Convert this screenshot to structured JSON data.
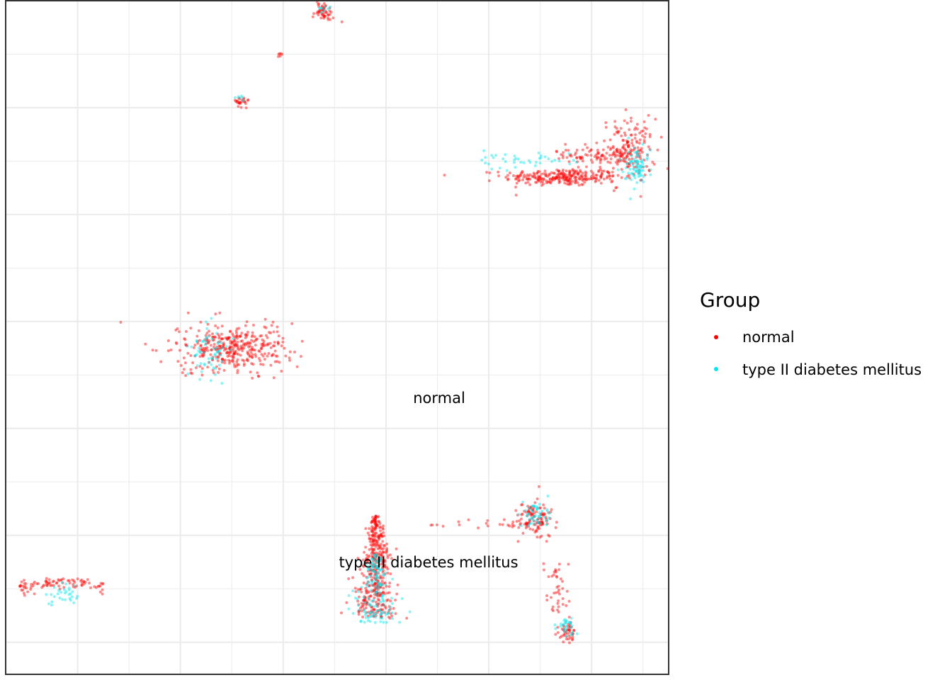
{
  "chart_data": {
    "type": "scatter",
    "title": "",
    "xlabel": "",
    "ylabel": "",
    "grid": true,
    "legend": {
      "title": "Group",
      "placement": "right",
      "entries": [
        {
          "label": "normal",
          "color": "#ff0000"
        },
        {
          "label": "type II diabetes mellitus",
          "color": "#00e5ee"
        }
      ]
    },
    "annotations": [
      {
        "text": "normal",
        "x": 0.5,
        "y": 7.0
      },
      {
        "text": "type II diabetes mellitus",
        "x": 0.33,
        "y": 0.45
      }
    ],
    "xlim": [
      -3.2,
      3.25
    ],
    "ylim": [
      -0.8,
      5.5
    ],
    "series": [
      {
        "name": "normal",
        "color": "#ff0000",
        "clusters": [
          {
            "cx": 2.2,
            "cy": 3.85,
            "sx": 0.28,
            "sy": 0.04,
            "n": 260,
            "shape": "blob"
          },
          {
            "cx": 2.85,
            "cy": 4.1,
            "sx": 0.14,
            "sy": 0.15,
            "n": 180,
            "shape": "blob"
          },
          {
            "cx": 2.55,
            "cy": 4.05,
            "sx": 0.25,
            "sy": 0.05,
            "n": 70,
            "shape": "bridge"
          },
          {
            "cx": -1.0,
            "cy": 2.25,
            "sx": 0.28,
            "sy": 0.11,
            "n": 380,
            "shape": "blob"
          },
          {
            "cx": -0.1,
            "cy": 5.4,
            "sx": 0.05,
            "sy": 0.04,
            "n": 50,
            "shape": "blob"
          },
          {
            "cx": -0.55,
            "cy": 5.0,
            "sx": 0.03,
            "sy": 0.01,
            "n": 6,
            "shape": "blob"
          },
          {
            "cx": -0.9,
            "cy": 4.55,
            "sx": 0.04,
            "sy": 0.03,
            "n": 25,
            "shape": "blob"
          },
          {
            "cx": -2.65,
            "cy": 0.0,
            "sx": 0.3,
            "sy": 0.05,
            "n": 90,
            "shape": "arc"
          },
          {
            "cx": 0.4,
            "cy": 0.2,
            "sx": 0.12,
            "sy": 0.3,
            "n": 420,
            "shape": "drop"
          },
          {
            "cx": 1.4,
            "cy": 0.6,
            "sx": 0.3,
            "sy": 0.02,
            "n": 25,
            "shape": "bridge"
          },
          {
            "cx": 1.95,
            "cy": 0.65,
            "sx": 0.08,
            "sy": 0.08,
            "n": 110,
            "shape": "blob"
          },
          {
            "cx": 2.15,
            "cy": 0.0,
            "sx": 0.05,
            "sy": 0.25,
            "n": 40,
            "shape": "stem"
          },
          {
            "cx": 2.25,
            "cy": -0.4,
            "sx": 0.05,
            "sy": 0.05,
            "n": 45,
            "shape": "blob"
          }
        ]
      },
      {
        "name": "type II diabetes mellitus",
        "color": "#00e5ee",
        "clusters": [
          {
            "cx": 2.95,
            "cy": 3.95,
            "sx": 0.08,
            "sy": 0.1,
            "n": 80,
            "shape": "blob"
          },
          {
            "cx": 1.9,
            "cy": 4.0,
            "sx": 0.3,
            "sy": 0.04,
            "n": 40,
            "shape": "bridge"
          },
          {
            "cx": -1.2,
            "cy": 2.2,
            "sx": 0.1,
            "sy": 0.12,
            "n": 60,
            "shape": "blob"
          },
          {
            "cx": -0.1,
            "cy": 5.42,
            "sx": 0.03,
            "sy": 0.02,
            "n": 8,
            "shape": "blob"
          },
          {
            "cx": -0.92,
            "cy": 4.58,
            "sx": 0.02,
            "sy": 0.02,
            "n": 6,
            "shape": "blob"
          },
          {
            "cx": -2.65,
            "cy": -0.05,
            "sx": 0.1,
            "sy": 0.05,
            "n": 30,
            "shape": "blob"
          },
          {
            "cx": 0.4,
            "cy": 0.0,
            "sx": 0.12,
            "sy": 0.2,
            "n": 160,
            "shape": "drop"
          },
          {
            "cx": 1.95,
            "cy": 0.7,
            "sx": 0.07,
            "sy": 0.06,
            "n": 50,
            "shape": "blob"
          },
          {
            "cx": 2.25,
            "cy": -0.35,
            "sx": 0.05,
            "sy": 0.05,
            "n": 30,
            "shape": "blob"
          }
        ]
      }
    ]
  }
}
